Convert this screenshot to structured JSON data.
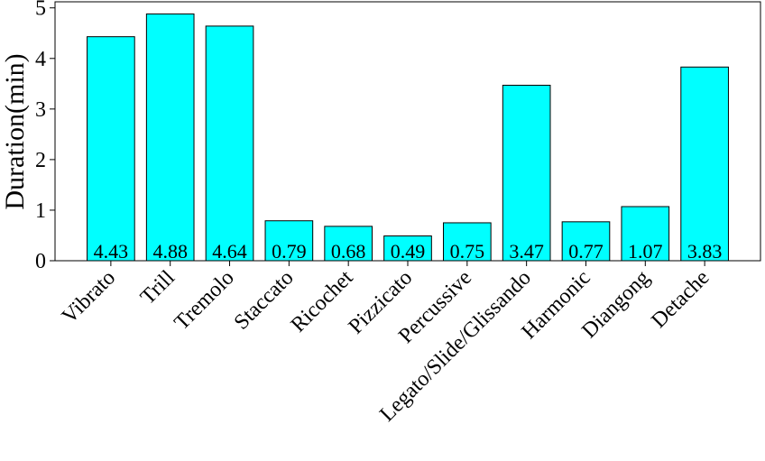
{
  "chart_data": {
    "type": "bar",
    "y_label": "Duration(min)",
    "categories": [
      "Vibrato",
      "Trill",
      "Tremolo",
      "Staccato",
      "Ricochet",
      "Pizzicato",
      "Percussive",
      "Legato/Slide/Glissando",
      "Harmonic",
      "Diangong",
      "Detache"
    ],
    "values": [
      4.43,
      4.88,
      4.64,
      0.79,
      0.68,
      0.49,
      0.75,
      3.47,
      0.77,
      1.07,
      3.83
    ],
    "color": "#00ffff",
    "ylim": [
      0,
      5.12
    ],
    "yticks": [
      0,
      1,
      2,
      3,
      4,
      5
    ],
    "grid": false
  }
}
